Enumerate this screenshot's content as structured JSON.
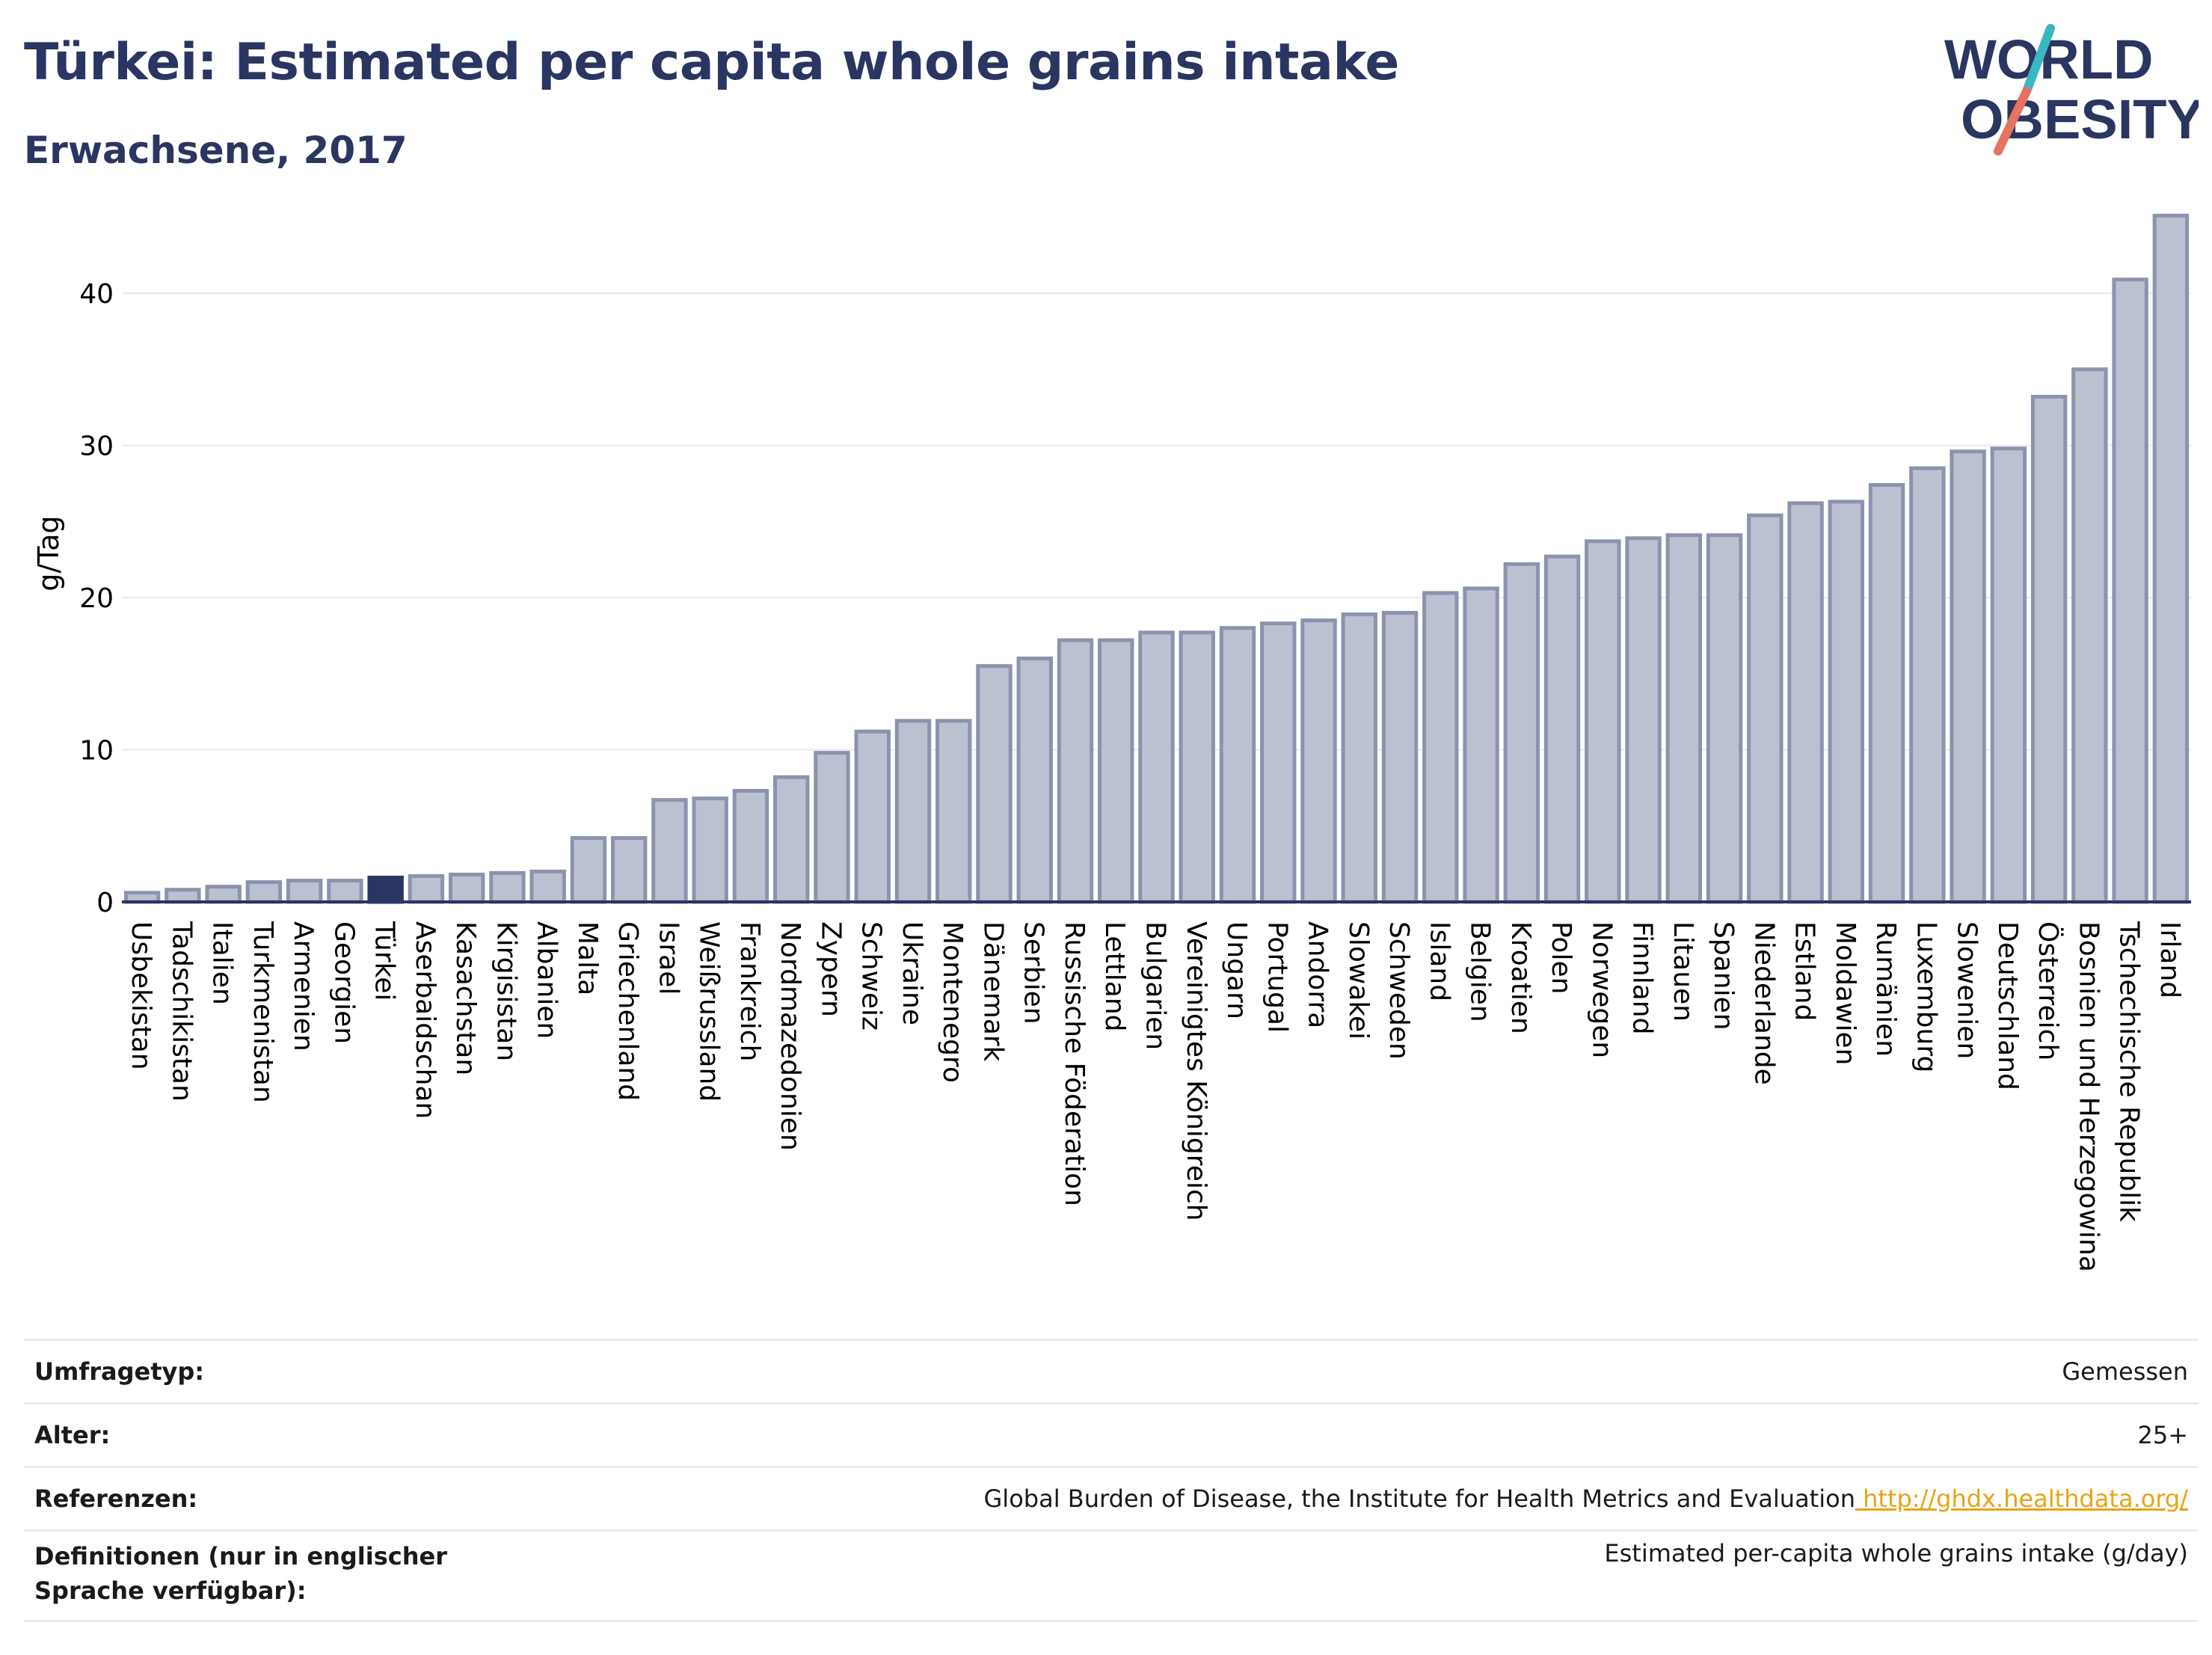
{
  "title": "Türkei: Estimated per capita whole grains intake",
  "subtitle": "Erwachsene, 2017",
  "logo": {
    "line1": "WORLD",
    "line2": "OBESITY"
  },
  "colors": {
    "bar": "#bcc1d1",
    "bar_stroke": "#8b93ad",
    "highlight": "#2b3561",
    "title": "#2b3561",
    "accent_teal": "#3ab7bf",
    "accent_coral": "#e5735f",
    "link": "#e8a317"
  },
  "chart_data": {
    "type": "bar",
    "ylabel": "g/Tag",
    "ylim": [
      0,
      46
    ],
    "yticks": [
      0,
      10,
      20,
      30,
      40
    ],
    "grid": true,
    "highlight": "Türkei",
    "categories": [
      "Usbekistan",
      "Tadschikistan",
      "Italien",
      "Turkmenistan",
      "Armenien",
      "Georgien",
      "Türkei",
      "Aserbaidschan",
      "Kasachstan",
      "Kirgisistan",
      "Albanien",
      "Malta",
      "Griechenland",
      "Israel",
      "Weißrussland",
      "Frankreich",
      "Nordmazedonien",
      "Zypern",
      "Schweiz",
      "Ukraine",
      "Montenegro",
      "Dänemark",
      "Serbien",
      "Russische Föderation",
      "Lettland",
      "Bulgarien",
      "Vereinigtes Königreich",
      "Ungarn",
      "Portugal",
      "Andorra",
      "Slowakei",
      "Schweden",
      "Island",
      "Belgien",
      "Kroatien",
      "Polen",
      "Norwegen",
      "Finnland",
      "Litauen",
      "Spanien",
      "Niederlande",
      "Estland",
      "Moldawien",
      "Rumänien",
      "Luxemburg",
      "Slowenien",
      "Deutschland",
      "Österreich",
      "Bosnien und Herzegowina",
      "Tschechische Republik",
      "Irland"
    ],
    "values": [
      0.6,
      0.8,
      1.0,
      1.3,
      1.4,
      1.4,
      1.6,
      1.7,
      1.8,
      1.9,
      2.0,
      4.2,
      4.2,
      6.7,
      6.8,
      7.3,
      8.2,
      9.8,
      11.2,
      11.9,
      11.9,
      15.5,
      16.0,
      17.2,
      17.2,
      17.7,
      17.7,
      18.0,
      18.3,
      18.5,
      18.9,
      19.0,
      20.3,
      20.6,
      22.2,
      22.7,
      23.7,
      23.9,
      24.1,
      24.1,
      25.4,
      26.2,
      26.3,
      27.4,
      28.5,
      29.6,
      29.8,
      33.2,
      35.0,
      40.9,
      45.1
    ]
  },
  "meta": {
    "rows": [
      {
        "label": "Umfragetyp:",
        "value": "Gemessen"
      },
      {
        "label": "Alter:",
        "value": "25+"
      },
      {
        "label": "Referenzen:",
        "value": "Global Burden of Disease, the Institute for Health Metrics and Evaluation",
        "link": "http://ghdx.healthdata.org/"
      },
      {
        "label": "Definitionen (nur in englischer Sprache verfügbar):",
        "value": "Estimated per-capita whole grains intake (g/day)"
      }
    ]
  }
}
